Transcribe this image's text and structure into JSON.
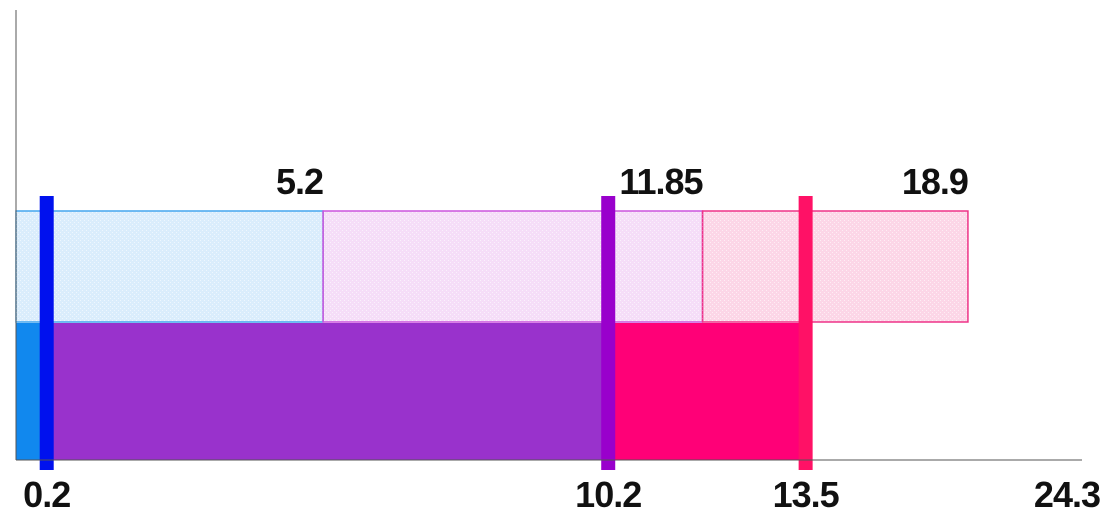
{
  "chart_data": {
    "type": "bar",
    "orientation": "horizontal",
    "stacked": true,
    "xlim": [
      0,
      24.3
    ],
    "grid": false,
    "legend": "none",
    "rows": [
      {
        "id": "upper",
        "fill": "hatched",
        "segments": [
          {
            "start": 0,
            "end": 7.0,
            "color": "#44a6ee"
          },
          {
            "start": 7.0,
            "end": 15.65,
            "color": "#cc55dd"
          },
          {
            "start": 15.65,
            "end": 21.7,
            "color": "#ee3388"
          }
        ]
      },
      {
        "id": "lower",
        "fill": "solid",
        "segments": [
          {
            "start": 0,
            "end": 0.7,
            "color": "#1188ee"
          },
          {
            "start": 0.7,
            "end": 13.5,
            "color": "#9932cc"
          },
          {
            "start": 13.5,
            "end": 18.0,
            "color": "#ff0077"
          }
        ]
      }
    ],
    "markers": [
      {
        "x": 0.7,
        "color": "#0011ee"
      },
      {
        "x": 13.5,
        "color": "#9900cc"
      },
      {
        "x": 18.0,
        "color": "#ff1166"
      }
    ],
    "top_labels": [
      {
        "text": "5.2",
        "x": 7.0
      },
      {
        "text": "11.85",
        "x": 15.65
      },
      {
        "text": "18.9",
        "x": 21.7
      }
    ],
    "bottom_labels": [
      {
        "text": "0.2",
        "x": 0.7
      },
      {
        "text": "10.2",
        "x": 13.5
      },
      {
        "text": "13.5",
        "x": 18.0
      },
      {
        "text": "24.3",
        "x": 24.3
      }
    ]
  }
}
